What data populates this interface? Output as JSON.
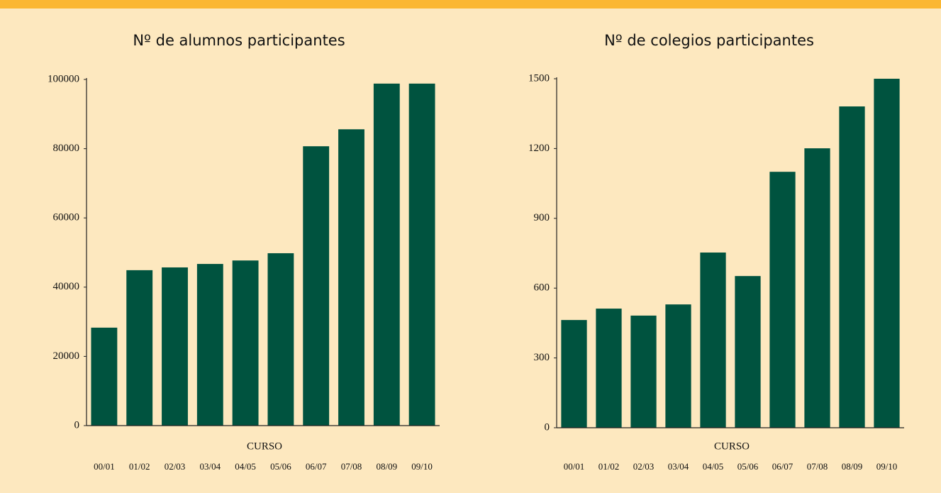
{
  "chart_data": [
    {
      "type": "bar",
      "title": "Nº de alumnos participantes",
      "xlabel": "CURSO",
      "categories": [
        "00/01",
        "01/02",
        "02/03",
        "03/04",
        "04/05",
        "05/06",
        "06/07",
        "07/08",
        "08/09",
        "09/10"
      ],
      "values": [
        28300,
        44900,
        45700,
        46700,
        47700,
        49800,
        80700,
        85600,
        98800,
        98800
      ],
      "color": "#00533f",
      "ylim": [
        0,
        100000
      ],
      "yticks": [
        0,
        20000,
        40000,
        60000,
        80000,
        100000
      ],
      "grid": false
    },
    {
      "type": "bar",
      "title": "Nº de colegios participantes",
      "xlabel": "CURSO",
      "categories": [
        "00/01",
        "01/02",
        "02/03",
        "03/04",
        "04/05",
        "05/06",
        "06/07",
        "07/08",
        "08/09",
        "09/10"
      ],
      "values": [
        463,
        512,
        482,
        530,
        753,
        652,
        1100,
        1201,
        1381,
        1500
      ],
      "color": "#00533f",
      "ylim": [
        0,
        1500
      ],
      "yticks": [
        0,
        300,
        600,
        900,
        1200,
        1500
      ],
      "grid": false
    }
  ]
}
